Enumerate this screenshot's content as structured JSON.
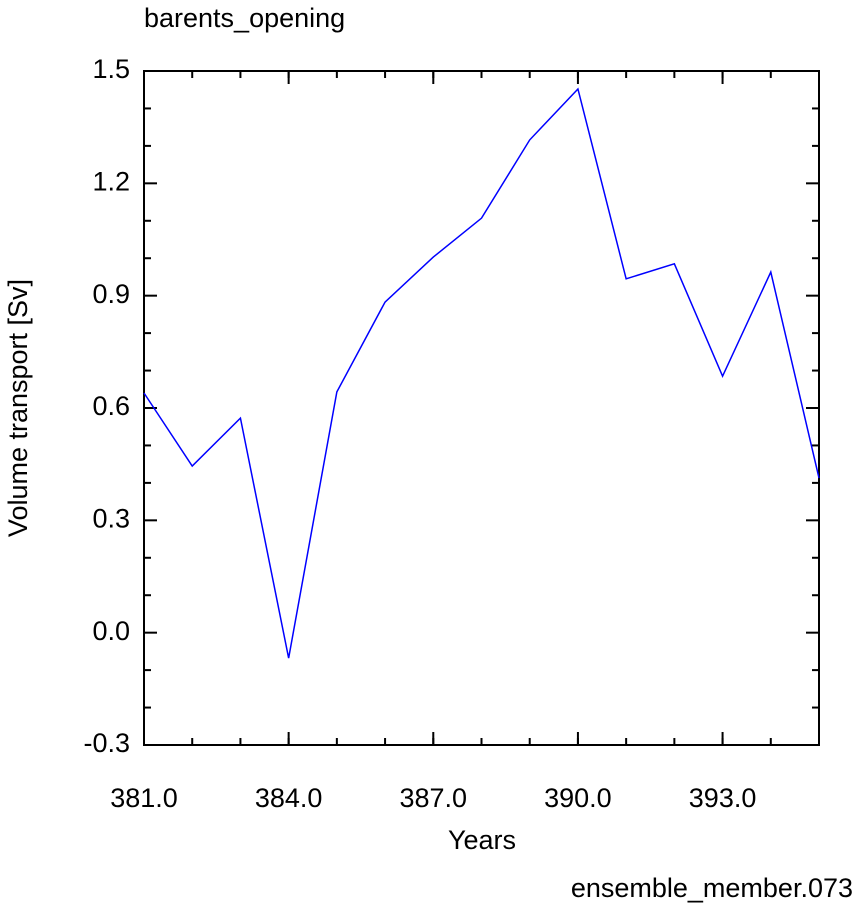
{
  "chart_data": {
    "type": "line",
    "title": "barents_opening",
    "x_label": "Years",
    "y_label": "Volume transport [Sv]",
    "annotation": "ensemble_member.073",
    "x": [
      381,
      382,
      383,
      384,
      385,
      386,
      387,
      388,
      389,
      390,
      391,
      392,
      393,
      394,
      395
    ],
    "series": [
      {
        "name": "barents_opening",
        "color": "#0000ff",
        "values": [
          0.64,
          0.445,
          0.573,
          -0.068,
          0.643,
          0.883,
          1.003,
          1.107,
          1.316,
          1.452,
          0.945,
          0.985,
          0.685,
          0.963,
          0.413
        ]
      }
    ],
    "xlim": [
      381,
      395
    ],
    "xticks": [
      {
        "value": 381,
        "label": "381.0"
      },
      {
        "value": 384,
        "label": "384.0"
      },
      {
        "value": 387,
        "label": "387.0"
      },
      {
        "value": 390,
        "label": "390.0"
      },
      {
        "value": 393,
        "label": "393.0"
      }
    ],
    "ylim": [
      -0.3,
      1.5
    ],
    "yticks": [
      -0.3,
      {
        "value": 0,
        "label": "0.0"
      },
      0.3,
      0.6,
      0.9,
      1.2,
      1.5
    ],
    "annotation_color": "#0000ff"
  }
}
